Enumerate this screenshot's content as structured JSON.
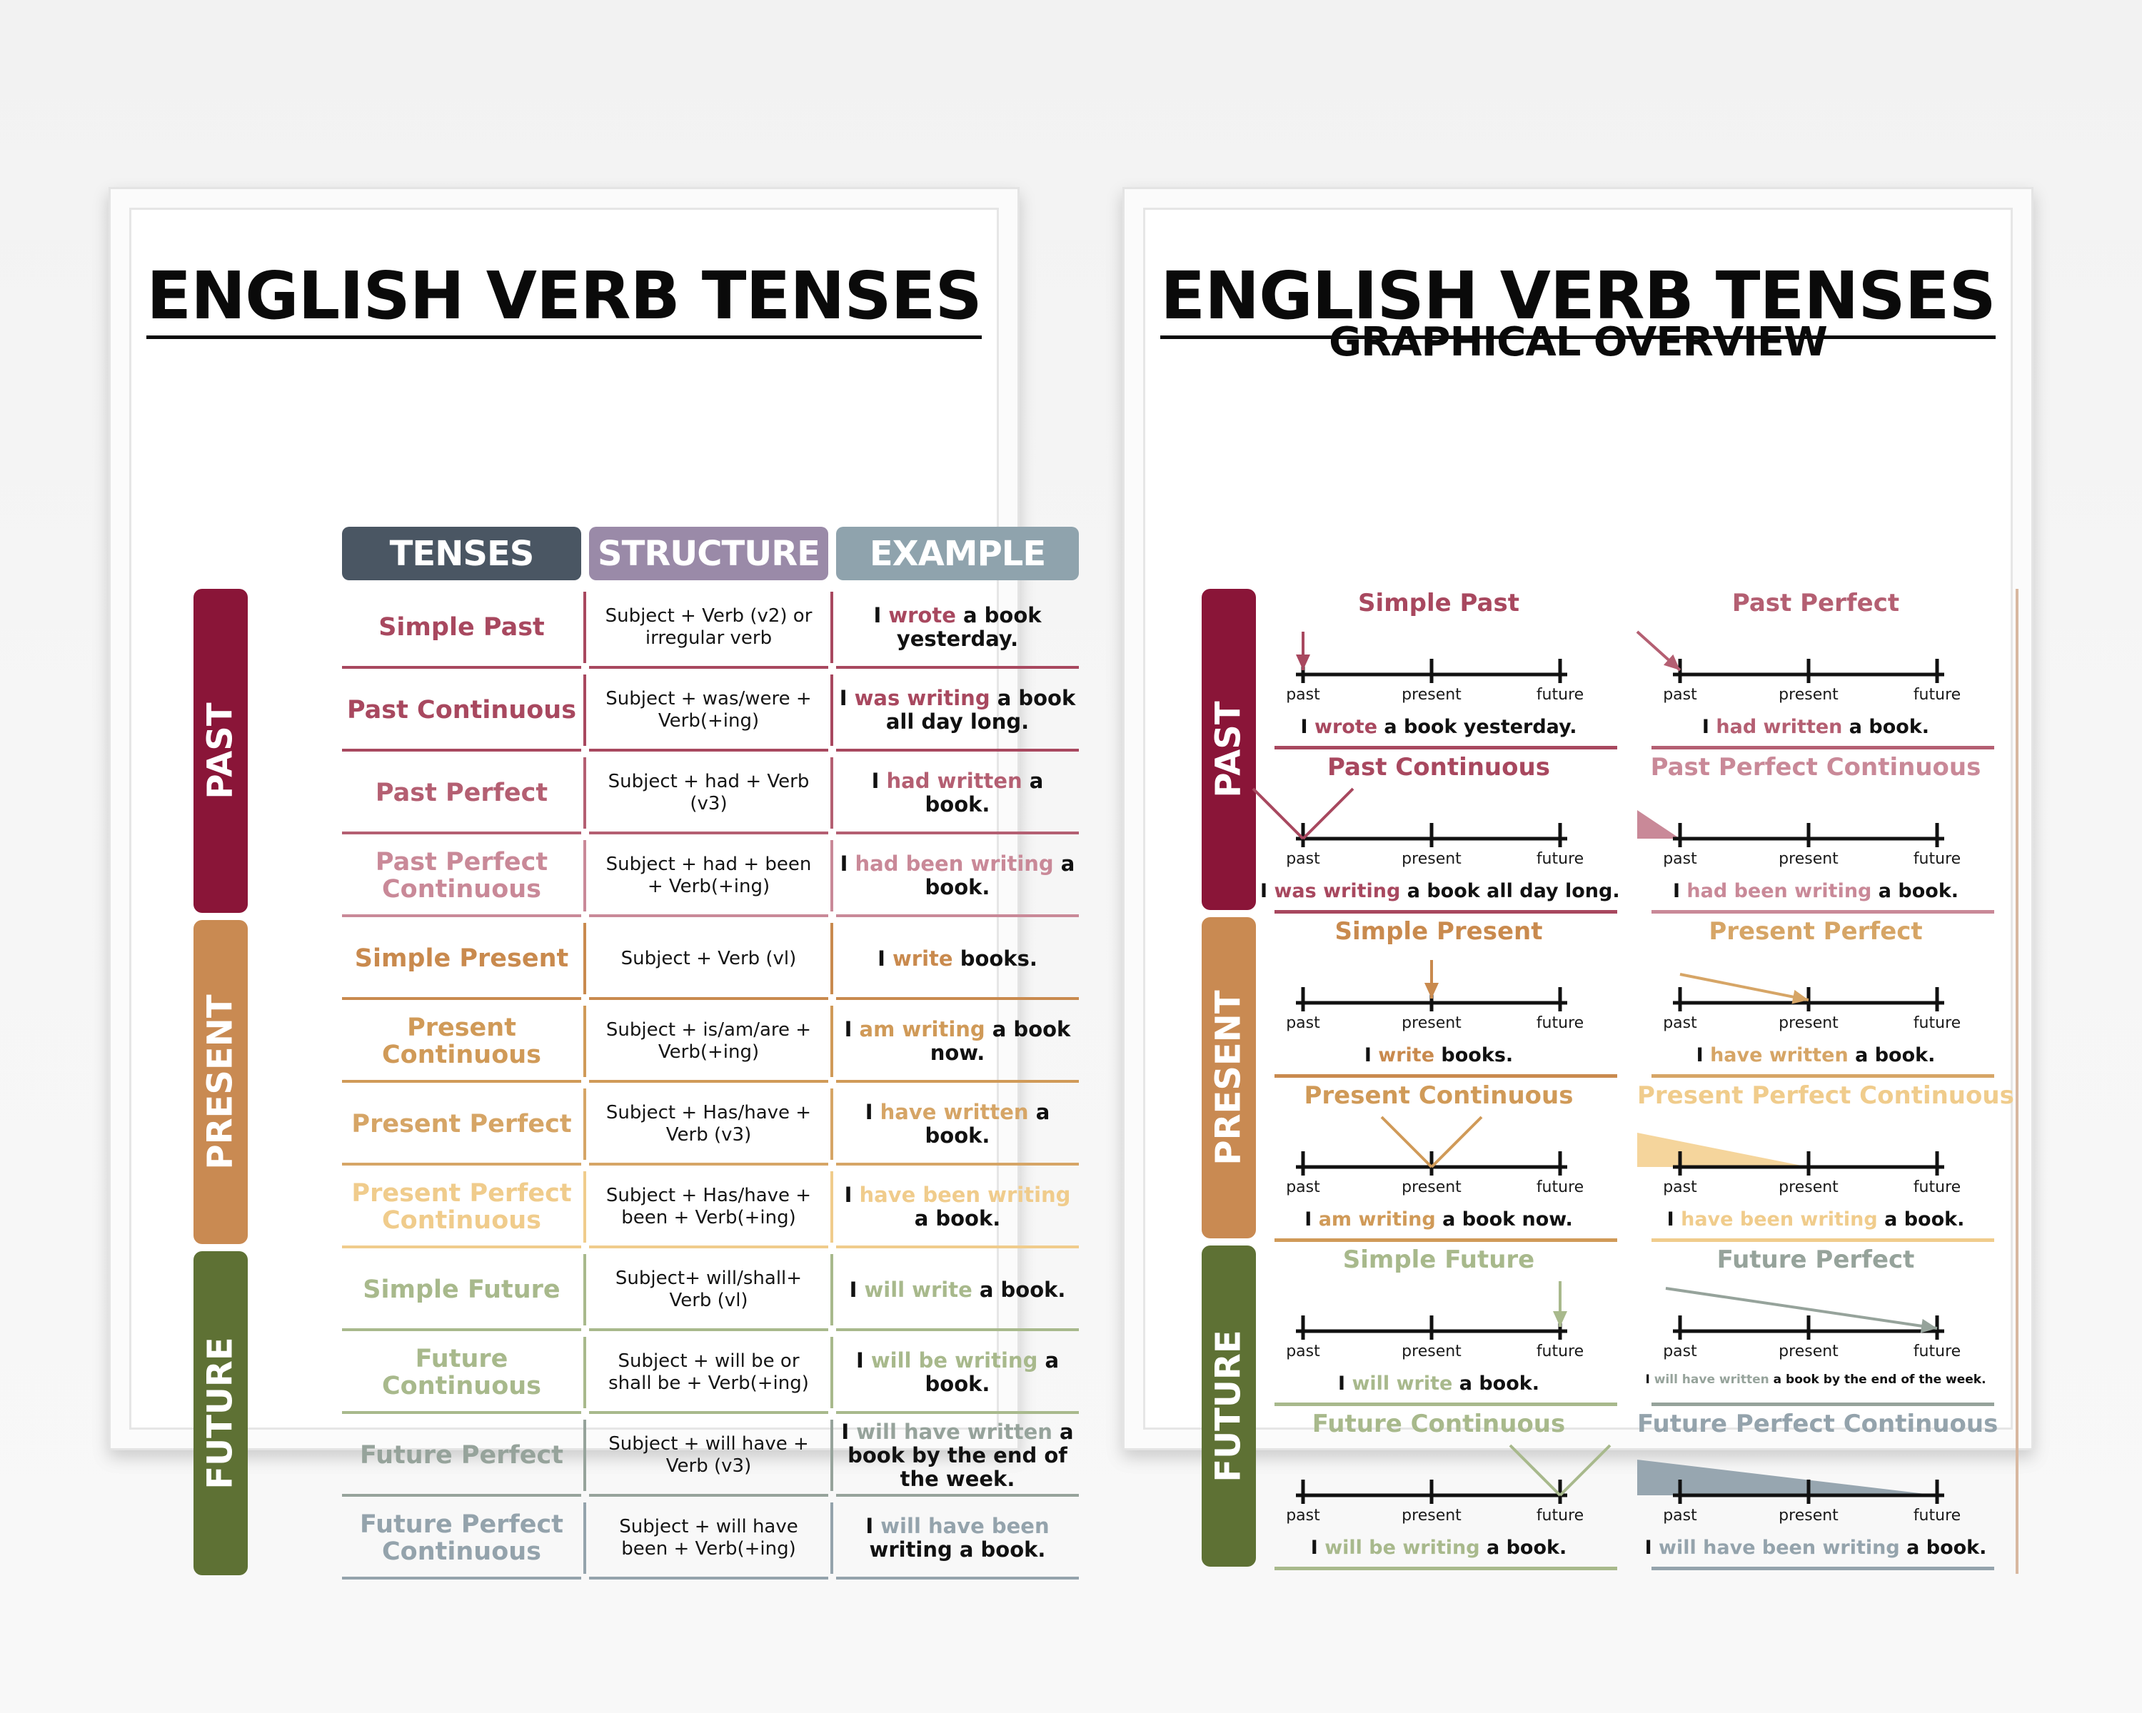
{
  "left_poster": {
    "title": "ENGLISH VERB TENSES",
    "headers": {
      "tenses": "TENSES",
      "structure": "STRUCTURE",
      "example": "EXAMPLE"
    },
    "groups": [
      "PAST",
      "PRESENT",
      "FUTURE"
    ],
    "rows": [
      {
        "tense": "Simple Past",
        "structure": "Subject + Verb (v2) or irregular verb",
        "ex_pre": "I ",
        "ex_hl": "wrote",
        "ex_post": " a book yesterday."
      },
      {
        "tense": "Past Continuous",
        "structure": "Subject + was/were + Verb(+ing)",
        "ex_pre": "I ",
        "ex_hl": "was writing",
        "ex_post": " a book all day long."
      },
      {
        "tense": "Past Perfect",
        "structure": "Subject + had + Verb (v3)",
        "ex_pre": "I ",
        "ex_hl": "had written",
        "ex_post": " a book."
      },
      {
        "tense": "Past Perfect Continuous",
        "structure": "Subject + had + been + Verb(+ing)",
        "ex_pre": "I ",
        "ex_hl": "had been writing",
        "ex_post": " a book."
      },
      {
        "tense": "Simple Present",
        "structure": "Subject + Verb (vl)",
        "ex_pre": "I ",
        "ex_hl": "write",
        "ex_post": " books."
      },
      {
        "tense": "Present Continuous",
        "structure": "Subject + is/am/are + Verb(+ing)",
        "ex_pre": "I ",
        "ex_hl": "am writing",
        "ex_post": " a book now."
      },
      {
        "tense": "Present Perfect",
        "structure": "Subject + Has/have + Verb (v3)",
        "ex_pre": "I ",
        "ex_hl": "have written",
        "ex_post": " a book."
      },
      {
        "tense": "Present Perfect Continuous",
        "structure": "Subject + Has/have + been + Verb(+ing)",
        "ex_pre": "I ",
        "ex_hl": "have been writing",
        "ex_post": " a book."
      },
      {
        "tense": "Simple Future",
        "structure": "Subject+ will/shall+ Verb (vl)",
        "ex_pre": "I ",
        "ex_hl": "will write",
        "ex_post": " a book."
      },
      {
        "tense": "Future Continuous",
        "structure": "Subject + will be or shall be + Verb(+ing)",
        "ex_pre": "I ",
        "ex_hl": "will be writing",
        "ex_post": " a book."
      },
      {
        "tense": "Future Perfect",
        "structure": "Subject + will have + Verb (v3)",
        "ex_pre": "I ",
        "ex_hl": "will have written",
        "ex_post": " a book by the end of the week."
      },
      {
        "tense": "Future Perfect Continuous",
        "structure": "Subject + will have been + Verb(+ing)",
        "ex_pre": "I ",
        "ex_hl": "will have been",
        "ex_post": " writing a book."
      }
    ]
  },
  "right_poster": {
    "title": "ENGLISH VERB TENSES",
    "subtitle": "GRAPHICAL OVERVIEW",
    "groups": [
      "PAST",
      "PRESENT",
      "FUTURE"
    ],
    "timeline_labels": {
      "past": "past",
      "present": "present",
      "future": "future"
    },
    "diagrams": [
      {
        "title": "Simple Past",
        "pre": "I ",
        "hl": "wrote",
        "post": " a book yesterday."
      },
      {
        "title": "Past Perfect",
        "pre": "I ",
        "hl": "had written",
        "post": " a book."
      },
      {
        "title": "Past Continuous",
        "pre": "I ",
        "hl": "was writing",
        "post": " a book all day long."
      },
      {
        "title": "Past Perfect Continuous",
        "pre": "I ",
        "hl": "had been writing",
        "post": " a book."
      },
      {
        "title": "Simple Present",
        "pre": "I ",
        "hl": "write",
        "post": " books."
      },
      {
        "title": "Present Perfect",
        "pre": "I ",
        "hl": "have written",
        "post": " a book."
      },
      {
        "title": "Present Continuous",
        "pre": "I ",
        "hl": "am writing",
        "post": " a book now."
      },
      {
        "title": "Present Perfect Continuous",
        "pre": "I ",
        "hl": "have been writing",
        "post": " a book."
      },
      {
        "title": "Simple Future",
        "pre": "I ",
        "hl": "will write",
        "post": " a book."
      },
      {
        "title": "Future Perfect",
        "pre": "I ",
        "hl": "will have written",
        "post": " a book by the end of the week."
      },
      {
        "title": "Future Continuous",
        "pre": "I ",
        "hl": "will be writing",
        "post": " a book."
      },
      {
        "title": "Future Perfect Continuous",
        "pre": "I ",
        "hl": "will have been writing",
        "post": " a book."
      }
    ]
  },
  "colors": {
    "past": "#8a1538",
    "present": "#c98a52",
    "future": "#5e7134",
    "header_tenses": "#4a5663",
    "header_structure": "#9a8aa8",
    "header_example": "#8fa3ad",
    "text_dark": "#111111"
  }
}
